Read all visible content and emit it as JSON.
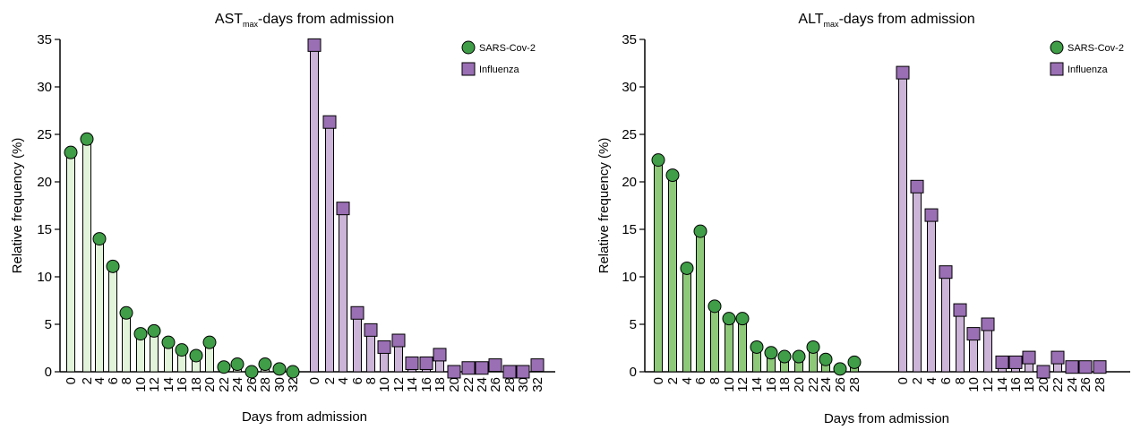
{
  "chart_data": [
    {
      "type": "bar",
      "title_main": "AST",
      "title_sub": "max",
      "title_rest": "-days from admission",
      "xlabel": "Days from admission",
      "ylabel": "Relative frequency (%)",
      "ylim": [
        0,
        35
      ],
      "yticks": [
        "0",
        "5",
        "10",
        "15",
        "20",
        "25",
        "30",
        "35"
      ],
      "legend": {
        "position": "top-right"
      },
      "series": [
        {
          "name": "SARS-Cov-2",
          "marker": "circle",
          "fill": "#e2f4da",
          "marker_color": "#3f9e47",
          "categories": [
            "0",
            "2",
            "4",
            "6",
            "8",
            "10",
            "12",
            "14",
            "16",
            "18",
            "20",
            "22",
            "24",
            "26",
            "28",
            "30",
            "32"
          ],
          "values": [
            23.1,
            24.5,
            14.0,
            11.1,
            6.2,
            4.0,
            4.3,
            3.1,
            2.3,
            1.7,
            3.1,
            0.5,
            0.8,
            0.0,
            0.8,
            0.3,
            0.0
          ]
        },
        {
          "name": "Influenza",
          "marker": "square",
          "fill": "#ccb4d8",
          "marker_color": "#9a6fb4",
          "categories": [
            "0",
            "2",
            "4",
            "6",
            "8",
            "10",
            "12",
            "14",
            "16",
            "18",
            "20",
            "22",
            "24",
            "26",
            "28",
            "30",
            "32"
          ],
          "values": [
            34.4,
            26.3,
            17.2,
            6.2,
            4.4,
            2.6,
            3.3,
            0.9,
            0.9,
            1.8,
            0.0,
            0.4,
            0.4,
            0.7,
            0.0,
            0.0,
            0.7
          ]
        }
      ]
    },
    {
      "type": "bar",
      "title_main": "ALT",
      "title_sub": "max",
      "title_rest": "-days from admission",
      "xlabel": "Days from admission",
      "ylabel": "Relative frequency (%)",
      "ylim": [
        0,
        35
      ],
      "yticks": [
        "0",
        "5",
        "10",
        "15",
        "20",
        "25",
        "30",
        "35"
      ],
      "legend": {
        "position": "top-right"
      },
      "series": [
        {
          "name": "SARS-Cov-2",
          "marker": "circle",
          "fill": "#8dc979",
          "marker_color": "#3f9e47",
          "categories": [
            "0",
            "2",
            "4",
            "6",
            "8",
            "10",
            "12",
            "14",
            "16",
            "18",
            "20",
            "22",
            "24",
            "26",
            "28"
          ],
          "values": [
            22.3,
            20.7,
            10.9,
            14.8,
            6.9,
            5.6,
            5.6,
            2.6,
            2.0,
            1.6,
            1.6,
            2.6,
            1.3,
            0.3,
            1.0
          ]
        },
        {
          "name": "Influenza",
          "marker": "square",
          "fill": "#ccb4d8",
          "marker_color": "#9a6fb4",
          "categories": [
            "0",
            "2",
            "4",
            "6",
            "8",
            "10",
            "12",
            "14",
            "16",
            "18",
            "20",
            "22",
            "24",
            "26",
            "28"
          ],
          "values": [
            31.5,
            19.5,
            16.5,
            10.5,
            6.5,
            4.0,
            5.0,
            1.0,
            1.0,
            1.5,
            0.0,
            1.5,
            0.5,
            0.5,
            0.5
          ]
        }
      ]
    }
  ]
}
